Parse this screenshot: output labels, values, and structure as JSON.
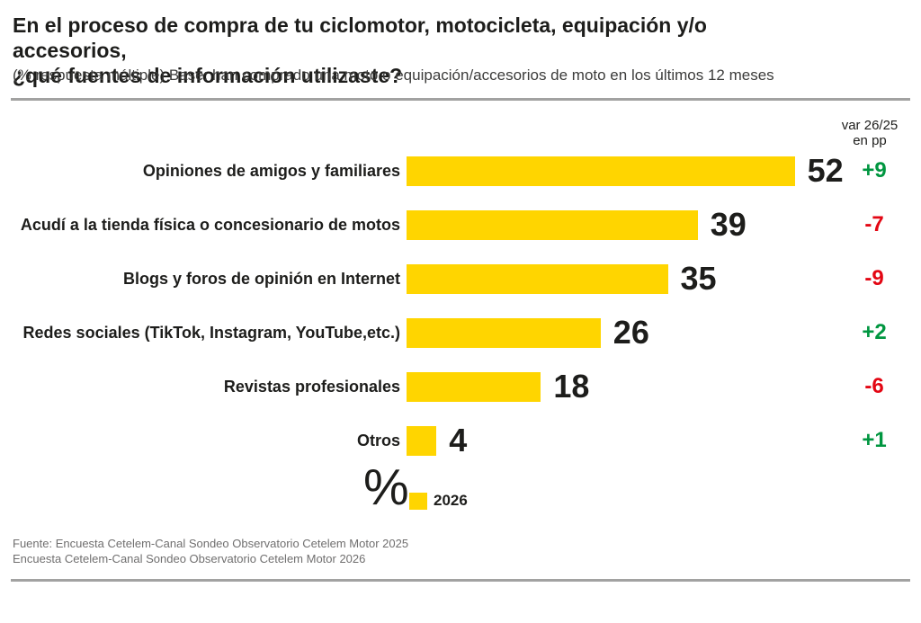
{
  "header": {
    "title_line1": "En el proceso de compra de tu ciclomotor, motocicleta, equipación y/o accesorios,",
    "title_line2": "¿qué fuentes de información utilizaste?",
    "subtitle": "(% respuesta múltiple) Base: han comprado una moto o equipación/accesorios de moto en los últimos 12 meses"
  },
  "chart_data": {
    "type": "bar",
    "orientation": "horizontal",
    "title": "¿qué fuentes de información utilizaste?",
    "unit": "%",
    "categories": [
      "Opiniones de amigos y familiares",
      "Acudí a la tienda física o concesionario de motos",
      "Blogs y foros de opinión en Internet",
      "Redes sociales (TikTok, Instagram, YouTube,etc.)",
      "Revistas profesionales",
      "Otros"
    ],
    "series": [
      {
        "name": "2026",
        "values": [
          52,
          39,
          35,
          26,
          18,
          4
        ]
      }
    ],
    "variations": {
      "header_line1": "var 26/25",
      "header_line2": "en pp",
      "values": [
        "+9",
        "-7",
        "-9",
        "+2",
        "-6",
        "+1"
      ]
    },
    "xlim": [
      0,
      55
    ],
    "grid": false,
    "legend_position": "bottom",
    "colors": {
      "bar": "#ffd500",
      "positive": "#009640",
      "negative": "#e30613"
    },
    "legend": {
      "unit_symbol": "%",
      "label": "2026"
    }
  },
  "footer": {
    "line1": "Fuente: Encuesta Cetelem-Canal Sondeo Observatorio Cetelem Motor 2025",
    "line2": "Encuesta Cetelem-Canal Sondeo Observatorio Cetelem Motor 2026"
  }
}
